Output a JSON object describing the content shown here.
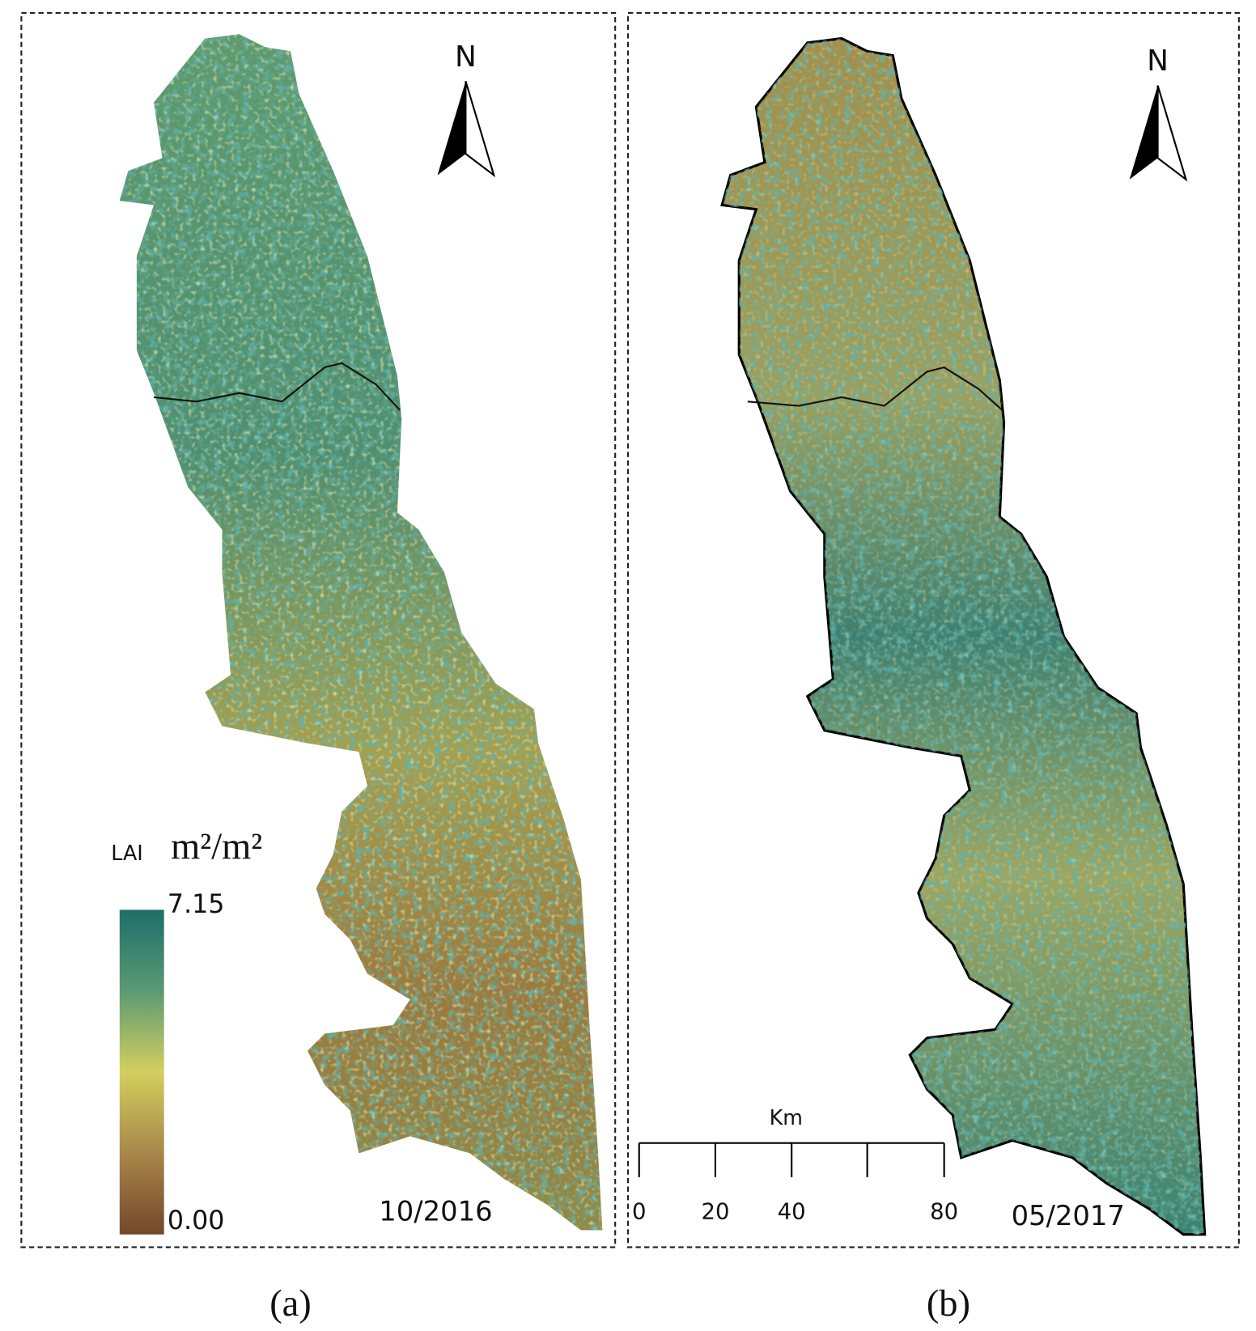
{
  "panels": [
    {
      "label": "(a)",
      "date": "10/2016",
      "north": "N"
    },
    {
      "label": "(b)",
      "date": "05/2017",
      "north": "N"
    }
  ],
  "legend": {
    "title": "LAI",
    "unit": "m²/m²",
    "max": 7.15,
    "min": {
      "value": 0,
      "label": "0.00"
    }
  },
  "scale_bar": {
    "unit": "Km",
    "ticks": [
      0,
      20,
      40,
      80
    ]
  }
}
